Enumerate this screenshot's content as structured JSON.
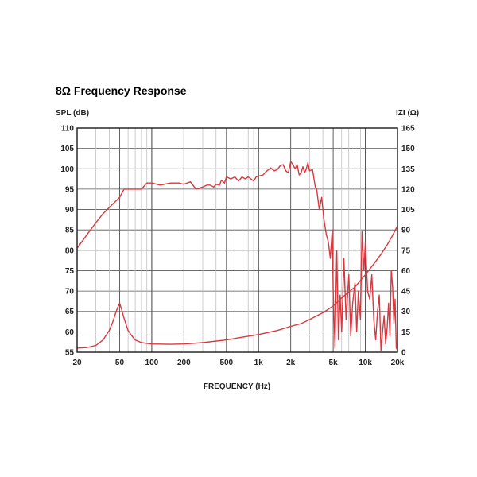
{
  "colors": {
    "curve": "#d9383f",
    "grid": "#b9b9b9",
    "grid_major": "#555555",
    "frame": "#1a1a1a",
    "text": "#222222"
  },
  "chart_data": {
    "type": "line",
    "title": "8Ω Frequency Response",
    "xlabel": "FREQUENCY (Hz)",
    "ylabel_left": "SPL (dB)",
    "ylabel_right": "IZI (Ω)",
    "xscale": "log",
    "xlim": [
      20,
      20000
    ],
    "ylim_left": [
      55,
      110
    ],
    "ylim_right": [
      0,
      165
    ],
    "x_ticks": [
      {
        "value": 20,
        "label": "20"
      },
      {
        "value": 50,
        "label": "50"
      },
      {
        "value": 100,
        "label": "100"
      },
      {
        "value": 200,
        "label": "200"
      },
      {
        "value": 500,
        "label": "500"
      },
      {
        "value": 1000,
        "label": "1k"
      },
      {
        "value": 2000,
        "label": "2k"
      },
      {
        "value": 5000,
        "label": "5k"
      },
      {
        "value": 10000,
        "label": "10k"
      },
      {
        "value": 20000,
        "label": "20k"
      }
    ],
    "y_ticks_left": [
      "55",
      "60",
      "65",
      "70",
      "75",
      "80",
      "85",
      "90",
      "95",
      "100",
      "105",
      "110"
    ],
    "y_ticks_right": [
      "0",
      "15",
      "30",
      "45",
      "60",
      "75",
      "90",
      "105",
      "120",
      "135",
      "150",
      "165"
    ],
    "grid": true,
    "series": [
      {
        "axis": "left",
        "x": [
          20,
          25,
          30,
          35,
          40,
          45,
          50,
          55,
          60,
          70,
          80,
          90,
          100,
          120,
          150,
          180,
          200,
          230,
          260,
          300,
          330,
          350,
          380,
          400,
          430,
          450,
          480,
          500,
          550,
          600,
          650,
          700,
          750,
          800,
          850,
          900,
          950,
          1000,
          1100,
          1200,
          1300,
          1400,
          1500,
          1600,
          1700,
          1800,
          1900,
          2000,
          2100,
          2200,
          2300,
          2400,
          2500,
          2600,
          2700,
          2800,
          2900,
          3000,
          3200,
          3400,
          3500,
          3700,
          3900,
          4100,
          4300,
          4500,
          4700,
          4900,
          5000,
          5200,
          5400,
          5600,
          5800,
          6000,
          6300,
          6600,
          7000,
          7300,
          7600,
          8000,
          8300,
          8600,
          9000,
          9300,
          9700,
          10000,
          10500,
          11000,
          11500,
          12000,
          12500,
          13000,
          13500,
          14000,
          14500,
          15000,
          15500,
          16000,
          16500,
          17000,
          17500,
          18000,
          18500,
          19000,
          19500,
          20000
        ],
        "values": [
          80.5,
          84,
          86.8,
          89,
          90.5,
          91.8,
          93,
          95,
          95,
          95,
          95,
          96.5,
          96.5,
          96,
          96.5,
          96.5,
          96.2,
          96.8,
          95,
          95.5,
          96,
          96,
          95.5,
          96.2,
          96,
          97.2,
          96.5,
          98,
          97.5,
          98,
          97,
          98,
          97.5,
          98,
          97.5,
          97,
          98,
          98.2,
          98.5,
          99.5,
          100.2,
          99.5,
          99.8,
          100.8,
          101,
          99.5,
          99,
          101.8,
          101,
          100,
          101,
          98.5,
          99,
          100.5,
          99,
          100,
          101.5,
          99.5,
          99.8,
          95.5,
          95,
          90,
          93,
          87.5,
          84,
          82,
          78,
          85,
          70,
          56,
          80,
          58,
          69,
          60,
          78,
          63,
          74,
          59,
          67,
          72,
          60,
          70,
          63,
          84.5,
          75,
          82,
          70,
          68,
          74,
          63,
          58,
          65,
          69,
          55.5,
          60,
          64,
          57,
          61,
          67,
          59,
          75,
          71,
          62,
          68,
          56,
          55.5
        ]
      },
      {
        "axis": "right",
        "x": [
          20,
          25,
          30,
          35,
          40,
          43,
          46,
          48,
          50,
          52,
          55,
          60,
          65,
          70,
          80,
          100,
          150,
          200,
          300,
          500,
          700,
          1000,
          1500,
          2000,
          2500,
          3000,
          4000,
          5000,
          6000,
          8000,
          10000,
          12000,
          14000,
          16000,
          18000,
          20000
        ],
        "values": [
          3,
          3.5,
          5,
          9,
          16,
          22,
          29,
          33,
          36,
          32,
          25,
          16,
          12,
          9,
          7,
          6,
          5.8,
          6,
          7,
          9,
          11,
          13,
          16,
          19,
          21,
          24,
          29,
          34,
          40,
          48,
          57,
          65,
          72,
          79,
          86,
          93
        ]
      }
    ]
  }
}
